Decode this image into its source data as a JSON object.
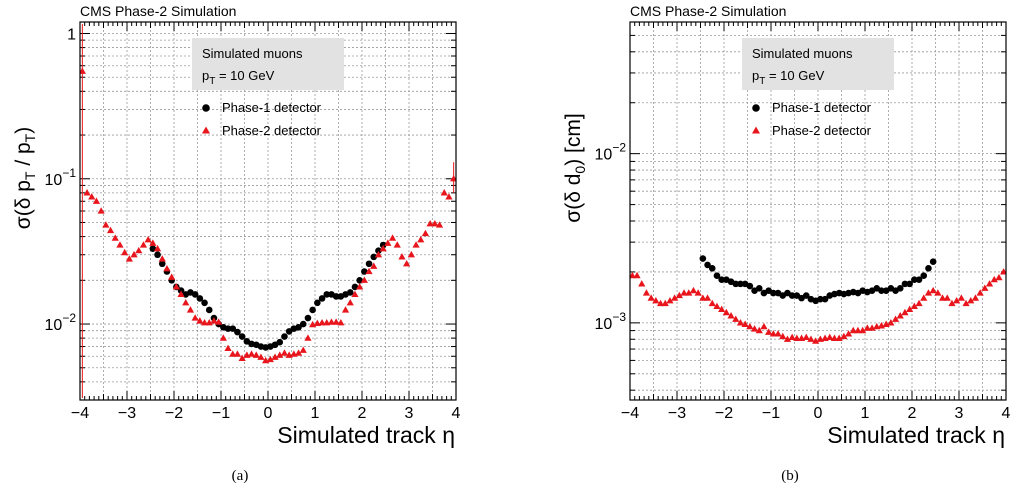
{
  "chart_data": [
    {
      "type": "scatter",
      "panel_id": "a",
      "header": "CMS Phase-2 Simulation",
      "caption": "(a)",
      "xlabel": "Simulated track η",
      "ylabel": "σ(δ p_T / p_T)",
      "xlim": [
        -4,
        4
      ],
      "ylim": [
        0.003,
        1.2
      ],
      "yscale": "log",
      "grid": true,
      "x_ticks": [
        "−4",
        "−3",
        "−2",
        "−1",
        "0",
        "1",
        "2",
        "3",
        "4"
      ],
      "y_ticks": [
        {
          "value": 0.01,
          "base": "10",
          "exp": "−2"
        },
        {
          "value": 0.1,
          "base": "10",
          "exp": "−1"
        },
        {
          "value": 1,
          "base": "1",
          "exp": ""
        }
      ],
      "legend": {
        "placement": "top-right",
        "box_lines": [
          {
            "text": "Simulated muons"
          },
          {
            "text": "p_T = 10 GeV"
          }
        ],
        "entries": [
          {
            "label": "Phase-1 detector",
            "marker": "circle",
            "color": "#000000"
          },
          {
            "label": "Phase-2 detector",
            "marker": "triangle",
            "color": "#e8161c"
          }
        ]
      },
      "series": [
        {
          "name": "Phase-1 detector",
          "marker": "circle",
          "color": "#000000",
          "x": [
            -2.45,
            -2.35,
            -2.25,
            -2.15,
            -2.05,
            -1.95,
            -1.85,
            -1.75,
            -1.65,
            -1.55,
            -1.45,
            -1.35,
            -1.25,
            -1.15,
            -1.05,
            -0.95,
            -0.85,
            -0.75,
            -0.65,
            -0.55,
            -0.45,
            -0.35,
            -0.25,
            -0.15,
            -0.05,
            0.05,
            0.15,
            0.25,
            0.35,
            0.45,
            0.55,
            0.65,
            0.75,
            0.85,
            0.95,
            1.05,
            1.15,
            1.25,
            1.35,
            1.45,
            1.55,
            1.65,
            1.75,
            1.85,
            1.95,
            2.05,
            2.15,
            2.25,
            2.35,
            2.45
          ],
          "y": [
            0.033,
            0.03,
            0.026,
            0.023,
            0.02,
            0.018,
            0.017,
            0.016,
            0.0165,
            0.016,
            0.015,
            0.014,
            0.0125,
            0.011,
            0.01,
            0.0095,
            0.0093,
            0.0093,
            0.0088,
            0.0082,
            0.0076,
            0.0073,
            0.0072,
            0.007,
            0.0069,
            0.007,
            0.0072,
            0.0075,
            0.0082,
            0.0089,
            0.0093,
            0.0095,
            0.01,
            0.011,
            0.0125,
            0.014,
            0.015,
            0.016,
            0.016,
            0.0155,
            0.0155,
            0.016,
            0.0165,
            0.018,
            0.02,
            0.023,
            0.026,
            0.029,
            0.032,
            0.035
          ]
        },
        {
          "name": "Phase-2 detector",
          "marker": "triangle",
          "color": "#e8161c",
          "x": [
            -3.95,
            -3.85,
            -3.75,
            -3.65,
            -3.55,
            -3.45,
            -3.35,
            -3.25,
            -3.15,
            -3.05,
            -2.95,
            -2.85,
            -2.75,
            -2.65,
            -2.55,
            -2.45,
            -2.35,
            -2.25,
            -2.15,
            -2.05,
            -1.95,
            -1.85,
            -1.75,
            -1.65,
            -1.55,
            -1.45,
            -1.35,
            -1.25,
            -1.15,
            -1.05,
            -0.95,
            -0.85,
            -0.75,
            -0.65,
            -0.55,
            -0.45,
            -0.35,
            -0.25,
            -0.15,
            -0.05,
            0.05,
            0.15,
            0.25,
            0.35,
            0.45,
            0.55,
            0.65,
            0.75,
            0.85,
            0.95,
            1.05,
            1.15,
            1.25,
            1.35,
            1.45,
            1.55,
            1.65,
            1.75,
            1.85,
            1.95,
            2.05,
            2.15,
            2.25,
            2.35,
            2.45,
            2.55,
            2.65,
            2.75,
            2.85,
            2.95,
            3.05,
            3.15,
            3.25,
            3.35,
            3.45,
            3.55,
            3.65,
            3.75,
            3.85,
            3.95
          ],
          "y": [
            0.55,
            0.08,
            0.075,
            0.07,
            0.06,
            0.048,
            0.044,
            0.039,
            0.035,
            0.031,
            0.028,
            0.03,
            0.032,
            0.035,
            0.038,
            0.036,
            0.033,
            0.028,
            0.024,
            0.021,
            0.018,
            0.016,
            0.014,
            0.0125,
            0.011,
            0.0105,
            0.0102,
            0.0102,
            0.0105,
            0.0103,
            0.008,
            0.0068,
            0.0062,
            0.0062,
            0.0058,
            0.0061,
            0.0062,
            0.0061,
            0.0059,
            0.0056,
            0.0057,
            0.0059,
            0.0061,
            0.0063,
            0.0061,
            0.0062,
            0.0063,
            0.0066,
            0.008,
            0.0099,
            0.0101,
            0.0102,
            0.0102,
            0.0103,
            0.0103,
            0.0102,
            0.0125,
            0.014,
            0.016,
            0.018,
            0.02,
            0.023,
            0.025,
            0.03,
            0.033,
            0.036,
            0.039,
            0.035,
            0.029,
            0.026,
            0.03,
            0.035,
            0.038,
            0.042,
            0.049,
            0.049,
            0.048,
            0.08,
            0.075,
            0.1
          ]
        }
      ]
    },
    {
      "type": "scatter",
      "panel_id": "b",
      "header": "CMS Phase-2 Simulation",
      "caption": "(b)",
      "xlabel": "Simulated track η",
      "ylabel": "σ(δ d_0) [cm]",
      "xlim": [
        -4,
        4
      ],
      "ylim": [
        0.00035,
        0.06
      ],
      "yscale": "log",
      "grid": true,
      "x_ticks": [
        "−4",
        "−3",
        "−2",
        "−1",
        "0",
        "1",
        "2",
        "3",
        "4"
      ],
      "y_ticks": [
        {
          "value": 0.001,
          "base": "10",
          "exp": "−3"
        },
        {
          "value": 0.01,
          "base": "10",
          "exp": "−2"
        }
      ],
      "legend": {
        "placement": "top-right",
        "box_lines": [
          {
            "text": "Simulated muons"
          },
          {
            "text": "p_T = 10 GeV"
          }
        ],
        "entries": [
          {
            "label": "Phase-1 detector",
            "marker": "circle",
            "color": "#000000"
          },
          {
            "label": "Phase-2 detector",
            "marker": "triangle",
            "color": "#e8161c"
          }
        ]
      },
      "series": [
        {
          "name": "Phase-1 detector",
          "marker": "circle",
          "color": "#000000",
          "x": [
            -2.45,
            -2.35,
            -2.25,
            -2.15,
            -2.05,
            -1.95,
            -1.85,
            -1.75,
            -1.65,
            -1.55,
            -1.45,
            -1.35,
            -1.25,
            -1.15,
            -1.05,
            -0.95,
            -0.85,
            -0.75,
            -0.65,
            -0.55,
            -0.45,
            -0.35,
            -0.25,
            -0.15,
            -0.05,
            0.05,
            0.15,
            0.25,
            0.35,
            0.45,
            0.55,
            0.65,
            0.75,
            0.85,
            0.95,
            1.05,
            1.15,
            1.25,
            1.35,
            1.45,
            1.55,
            1.65,
            1.75,
            1.85,
            1.95,
            2.05,
            2.15,
            2.25,
            2.35,
            2.45
          ],
          "y": [
            0.0024,
            0.0022,
            0.0021,
            0.0019,
            0.0018,
            0.0018,
            0.00175,
            0.0017,
            0.0017,
            0.0017,
            0.00165,
            0.00155,
            0.0016,
            0.0015,
            0.00155,
            0.0015,
            0.0015,
            0.00145,
            0.0015,
            0.00145,
            0.00145,
            0.0014,
            0.00145,
            0.00138,
            0.00135,
            0.00138,
            0.00138,
            0.00145,
            0.00148,
            0.0015,
            0.00148,
            0.0015,
            0.00152,
            0.0015,
            0.00155,
            0.00152,
            0.00155,
            0.0016,
            0.00155,
            0.00155,
            0.0016,
            0.00155,
            0.0016,
            0.0017,
            0.0017,
            0.0018,
            0.0018,
            0.0019,
            0.0021,
            0.0023
          ]
        },
        {
          "name": "Phase-2 detector",
          "marker": "triangle",
          "color": "#e8161c",
          "x": [
            -3.95,
            -3.85,
            -3.75,
            -3.65,
            -3.55,
            -3.45,
            -3.35,
            -3.25,
            -3.15,
            -3.05,
            -2.95,
            -2.85,
            -2.75,
            -2.65,
            -2.55,
            -2.45,
            -2.35,
            -2.25,
            -2.15,
            -2.05,
            -1.95,
            -1.85,
            -1.75,
            -1.65,
            -1.55,
            -1.45,
            -1.35,
            -1.25,
            -1.15,
            -1.05,
            -0.95,
            -0.85,
            -0.75,
            -0.65,
            -0.55,
            -0.45,
            -0.35,
            -0.25,
            -0.15,
            -0.05,
            0.05,
            0.15,
            0.25,
            0.35,
            0.45,
            0.55,
            0.65,
            0.75,
            0.85,
            0.95,
            1.05,
            1.15,
            1.25,
            1.35,
            1.45,
            1.55,
            1.65,
            1.75,
            1.85,
            1.95,
            2.05,
            2.15,
            2.25,
            2.35,
            2.45,
            2.55,
            2.65,
            2.75,
            2.85,
            2.95,
            3.05,
            3.15,
            3.25,
            3.35,
            3.45,
            3.55,
            3.65,
            3.75,
            3.85,
            3.95
          ],
          "y": [
            0.0019,
            0.0019,
            0.0017,
            0.0015,
            0.0014,
            0.00135,
            0.0013,
            0.0013,
            0.00135,
            0.0014,
            0.00145,
            0.0015,
            0.0015,
            0.00155,
            0.0015,
            0.0014,
            0.0014,
            0.0013,
            0.00125,
            0.0012,
            0.00115,
            0.0011,
            0.00105,
            0.001,
            0.00098,
            0.00095,
            0.00092,
            0.0009,
            0.00095,
            0.00088,
            0.00086,
            0.00086,
            0.00083,
            0.0008,
            0.00082,
            0.00081,
            0.00081,
            0.00082,
            0.0008,
            0.00078,
            0.0008,
            0.00081,
            0.00082,
            0.00081,
            0.00081,
            0.00083,
            0.00086,
            0.0009,
            0.0009,
            0.0009,
            0.00093,
            0.00093,
            0.00095,
            0.00096,
            0.00098,
            0.001,
            0.00105,
            0.0011,
            0.00115,
            0.0012,
            0.00125,
            0.0013,
            0.0014,
            0.0015,
            0.00155,
            0.0015,
            0.0014,
            0.0014,
            0.0013,
            0.00135,
            0.0014,
            0.0013,
            0.00135,
            0.0014,
            0.0015,
            0.0016,
            0.0017,
            0.0018,
            0.00185,
            0.002
          ]
        }
      ]
    }
  ]
}
